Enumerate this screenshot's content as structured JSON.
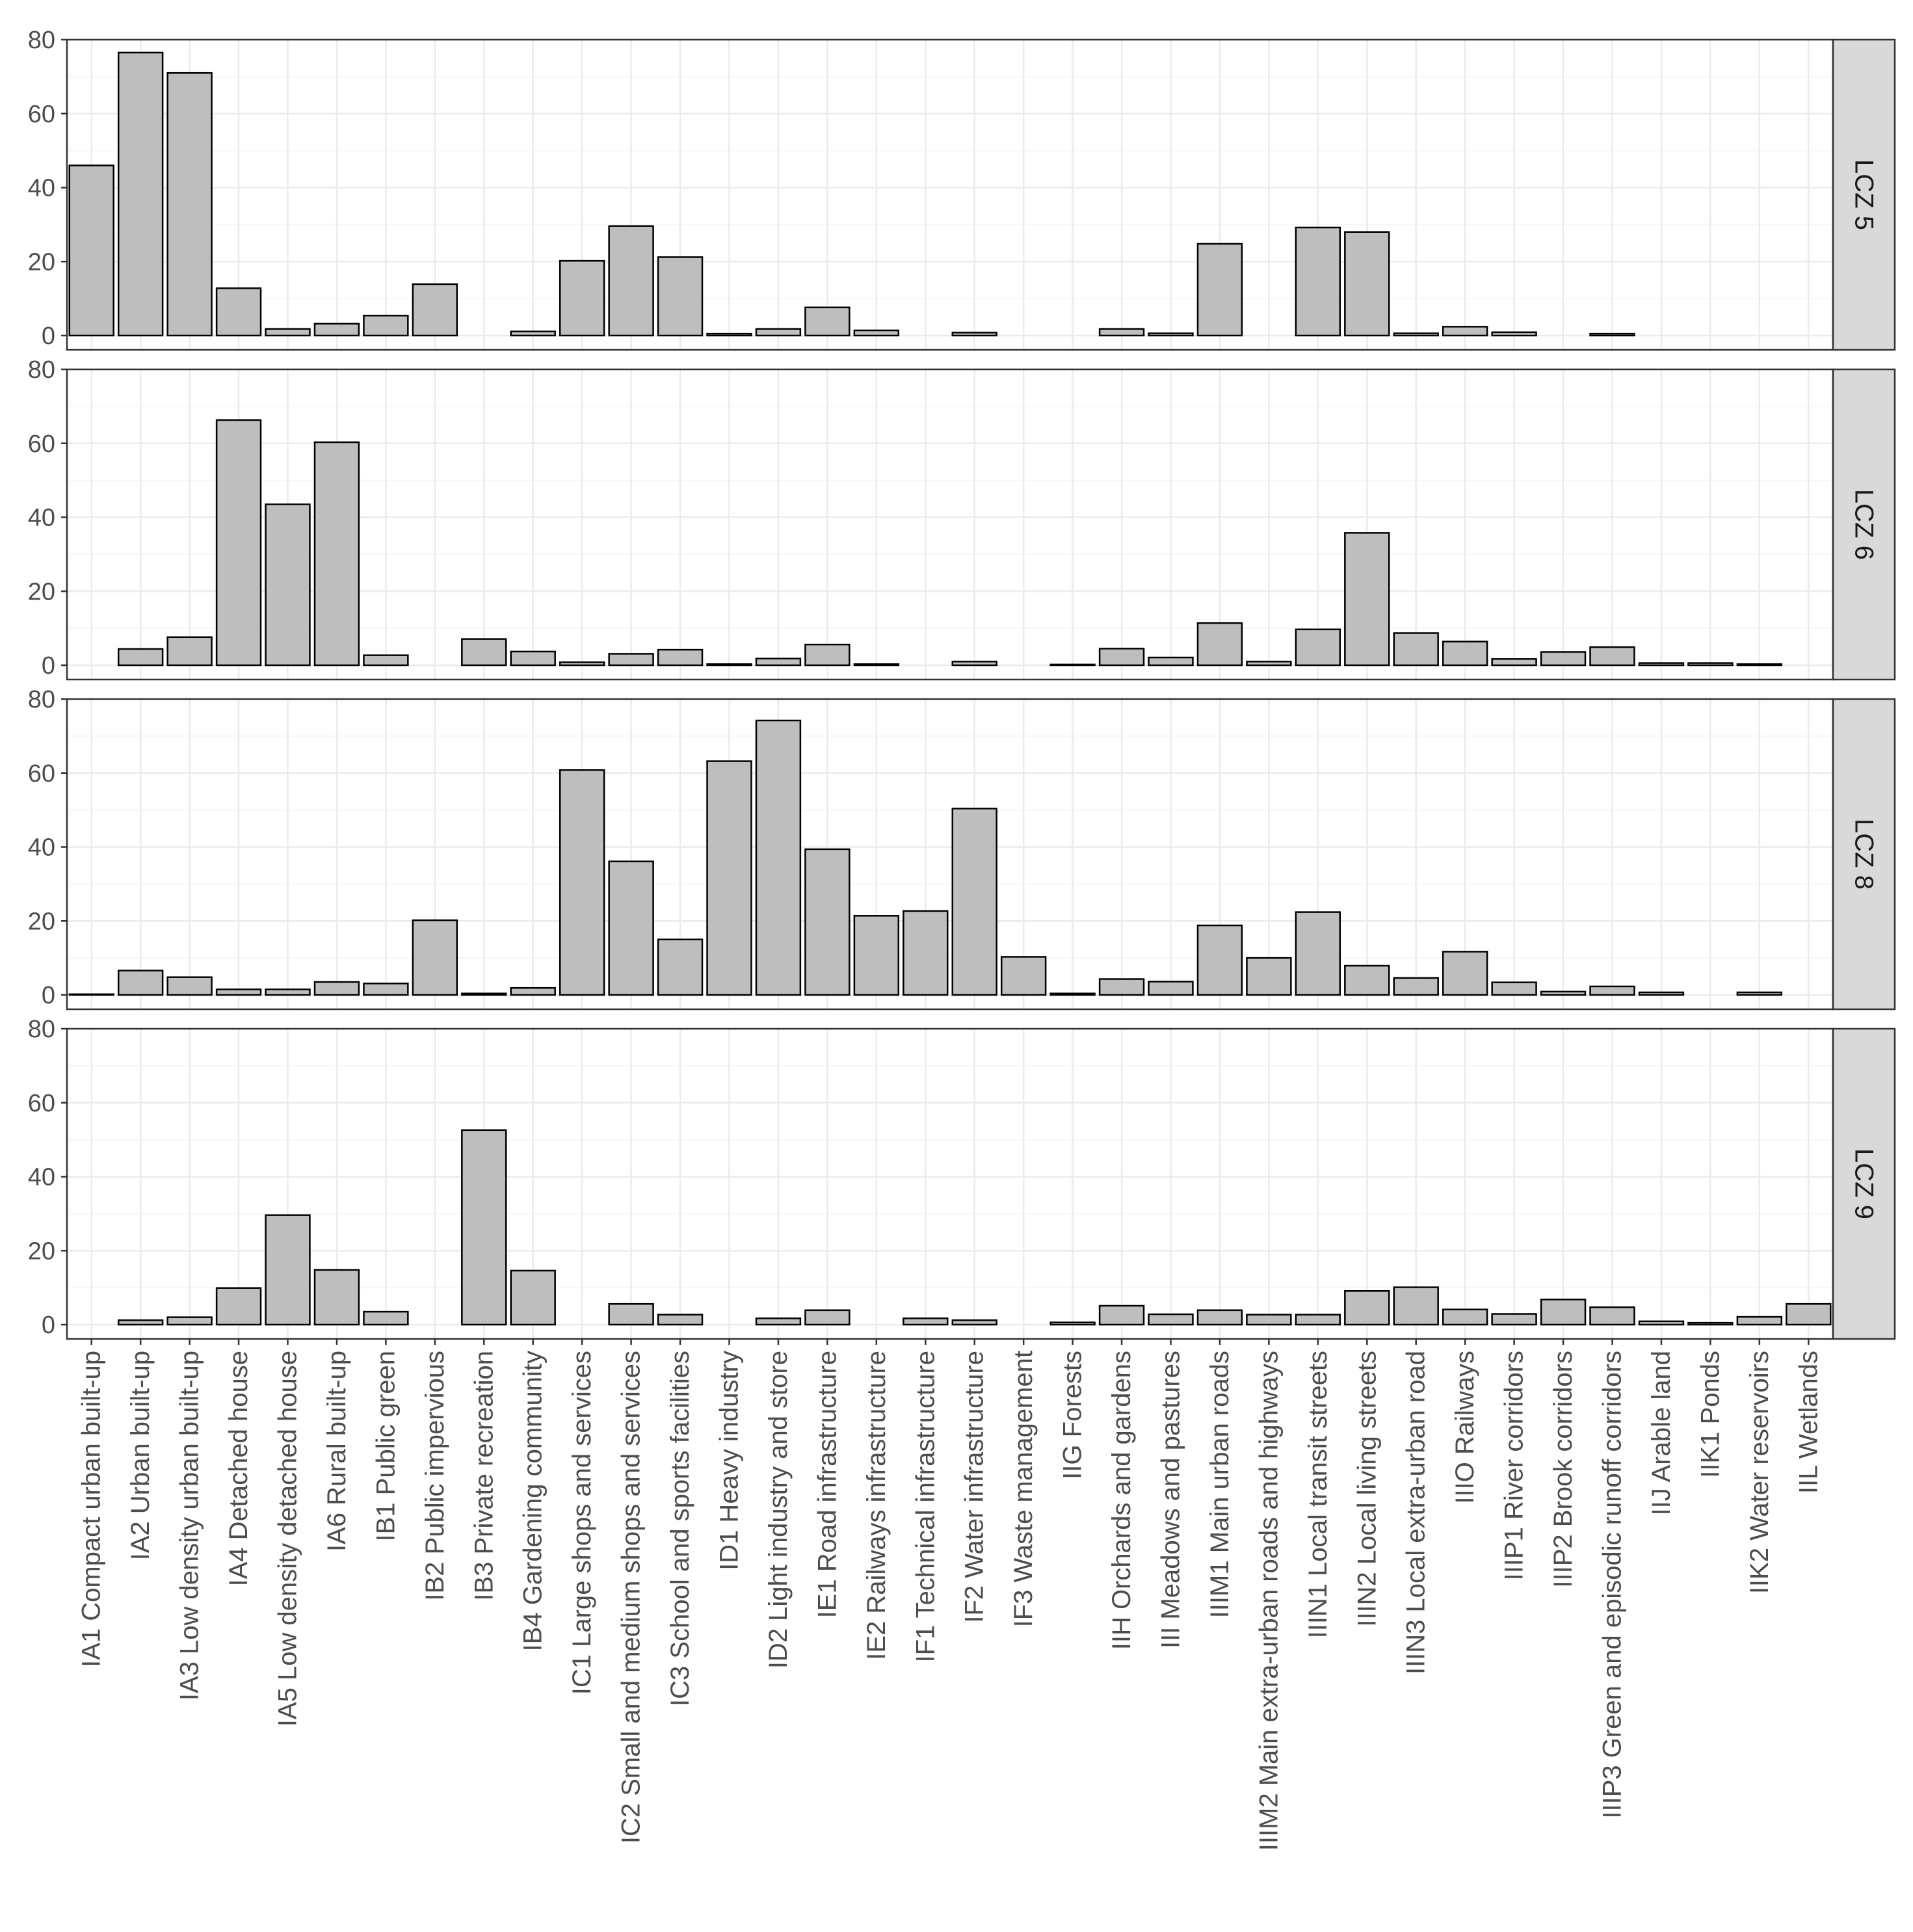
{
  "chart_data": {
    "type": "bar",
    "layout": "faceted",
    "facet_position": "right",
    "title": "",
    "xlabel": "",
    "ylabel": "",
    "ylim": [
      0,
      80
    ],
    "yticks": [
      0,
      20,
      40,
      60,
      80
    ],
    "grid": true,
    "bar_fill": "#bebebe",
    "bar_stroke": "#000000",
    "strip_fill": "#d9d9d9",
    "panel_border": "#333333",
    "grid_color": "#ebebeb",
    "categories": [
      "IA1 Compact urban built-up",
      "IA2 Urban built-up",
      "IA3 Low density urban built-up",
      "IA4 Detached house",
      "IA5 Low density detached house",
      "IA6 Rural built-up",
      "IB1 Public green",
      "IB2 Public impervious",
      "IB3 Private recreation",
      "IB4 Gardening community",
      "IC1 Large shops and services",
      "IC2 Small and medium shops and services",
      "IC3 School and sports facilities",
      "ID1 Heavy industry",
      "ID2 Light industry and store",
      "IE1 Road infrastructure",
      "IE2 Railways infrastructure",
      "IF1 Technical infrastructure",
      "IF2 Water infrastructure",
      "IF3 Waste management",
      "IIG Forests",
      "IIH Orchards and gardens",
      "III Meadows and pastures",
      "IIIM1 Main urban roads",
      "IIIM2 Main extra-urban roads and highways",
      "IIIN1 Local transit streets",
      "IIIN2 Local living streets",
      "IIIN3 Local extra-urban road",
      "IIIO Railways",
      "IIIP1 River corridors",
      "IIIP2 Brook corridors",
      "IIIP3 Green and episodic runoff corridors",
      "IIJ Arable land",
      "IIK1 Ponds",
      "IIK2 Water reservoirs",
      "IIL Wetlands"
    ],
    "series": [
      {
        "name": "LCZ 5",
        "values": [
          46,
          76.5,
          71,
          12.8,
          1.8,
          3.2,
          5.4,
          13.9,
          0,
          1.1,
          20.2,
          29.6,
          21.2,
          0.5,
          1.8,
          7.6,
          1.4,
          0,
          0.8,
          0,
          0,
          1.8,
          0.6,
          24.8,
          0,
          29.2,
          28,
          0.6,
          2.4,
          0.9,
          0,
          0.5,
          0,
          0,
          0,
          0
        ]
      },
      {
        "name": "LCZ 6",
        "values": [
          0,
          4.4,
          7.6,
          66.3,
          43.5,
          60.3,
          2.7,
          0,
          7.1,
          3.7,
          0.8,
          3.1,
          4.2,
          0.3,
          1.8,
          5.6,
          0.3,
          0,
          1,
          0,
          0.2,
          4.5,
          2.1,
          11.4,
          1,
          9.7,
          35.8,
          8.7,
          6.4,
          1.7,
          3.6,
          4.9,
          0.6,
          0.6,
          0.3,
          0
        ]
      },
      {
        "name": "LCZ 8",
        "values": [
          0.2,
          6.6,
          4.8,
          1.5,
          1.5,
          3.5,
          3.1,
          20.2,
          0.4,
          1.9,
          60.8,
          36.1,
          15,
          63.2,
          74.2,
          39.4,
          21.4,
          22.7,
          50.4,
          10.3,
          0.4,
          4.3,
          3.6,
          18.8,
          10,
          22.4,
          7.9,
          4.6,
          11.7,
          3.4,
          0.9,
          2.3,
          0.7,
          0,
          0.7,
          0
        ]
      },
      {
        "name": "LCZ 9",
        "values": [
          0,
          1.2,
          2,
          9.9,
          29.6,
          14.8,
          3.5,
          0,
          52.6,
          14.6,
          0,
          5.6,
          2.7,
          0,
          1.7,
          3.9,
          0,
          1.7,
          1.2,
          0,
          0.6,
          5.1,
          2.8,
          3.9,
          2.7,
          2.7,
          9.1,
          10.1,
          4.1,
          2.9,
          6.8,
          4.7,
          0.9,
          0.5,
          2.1,
          5.6
        ]
      }
    ]
  }
}
